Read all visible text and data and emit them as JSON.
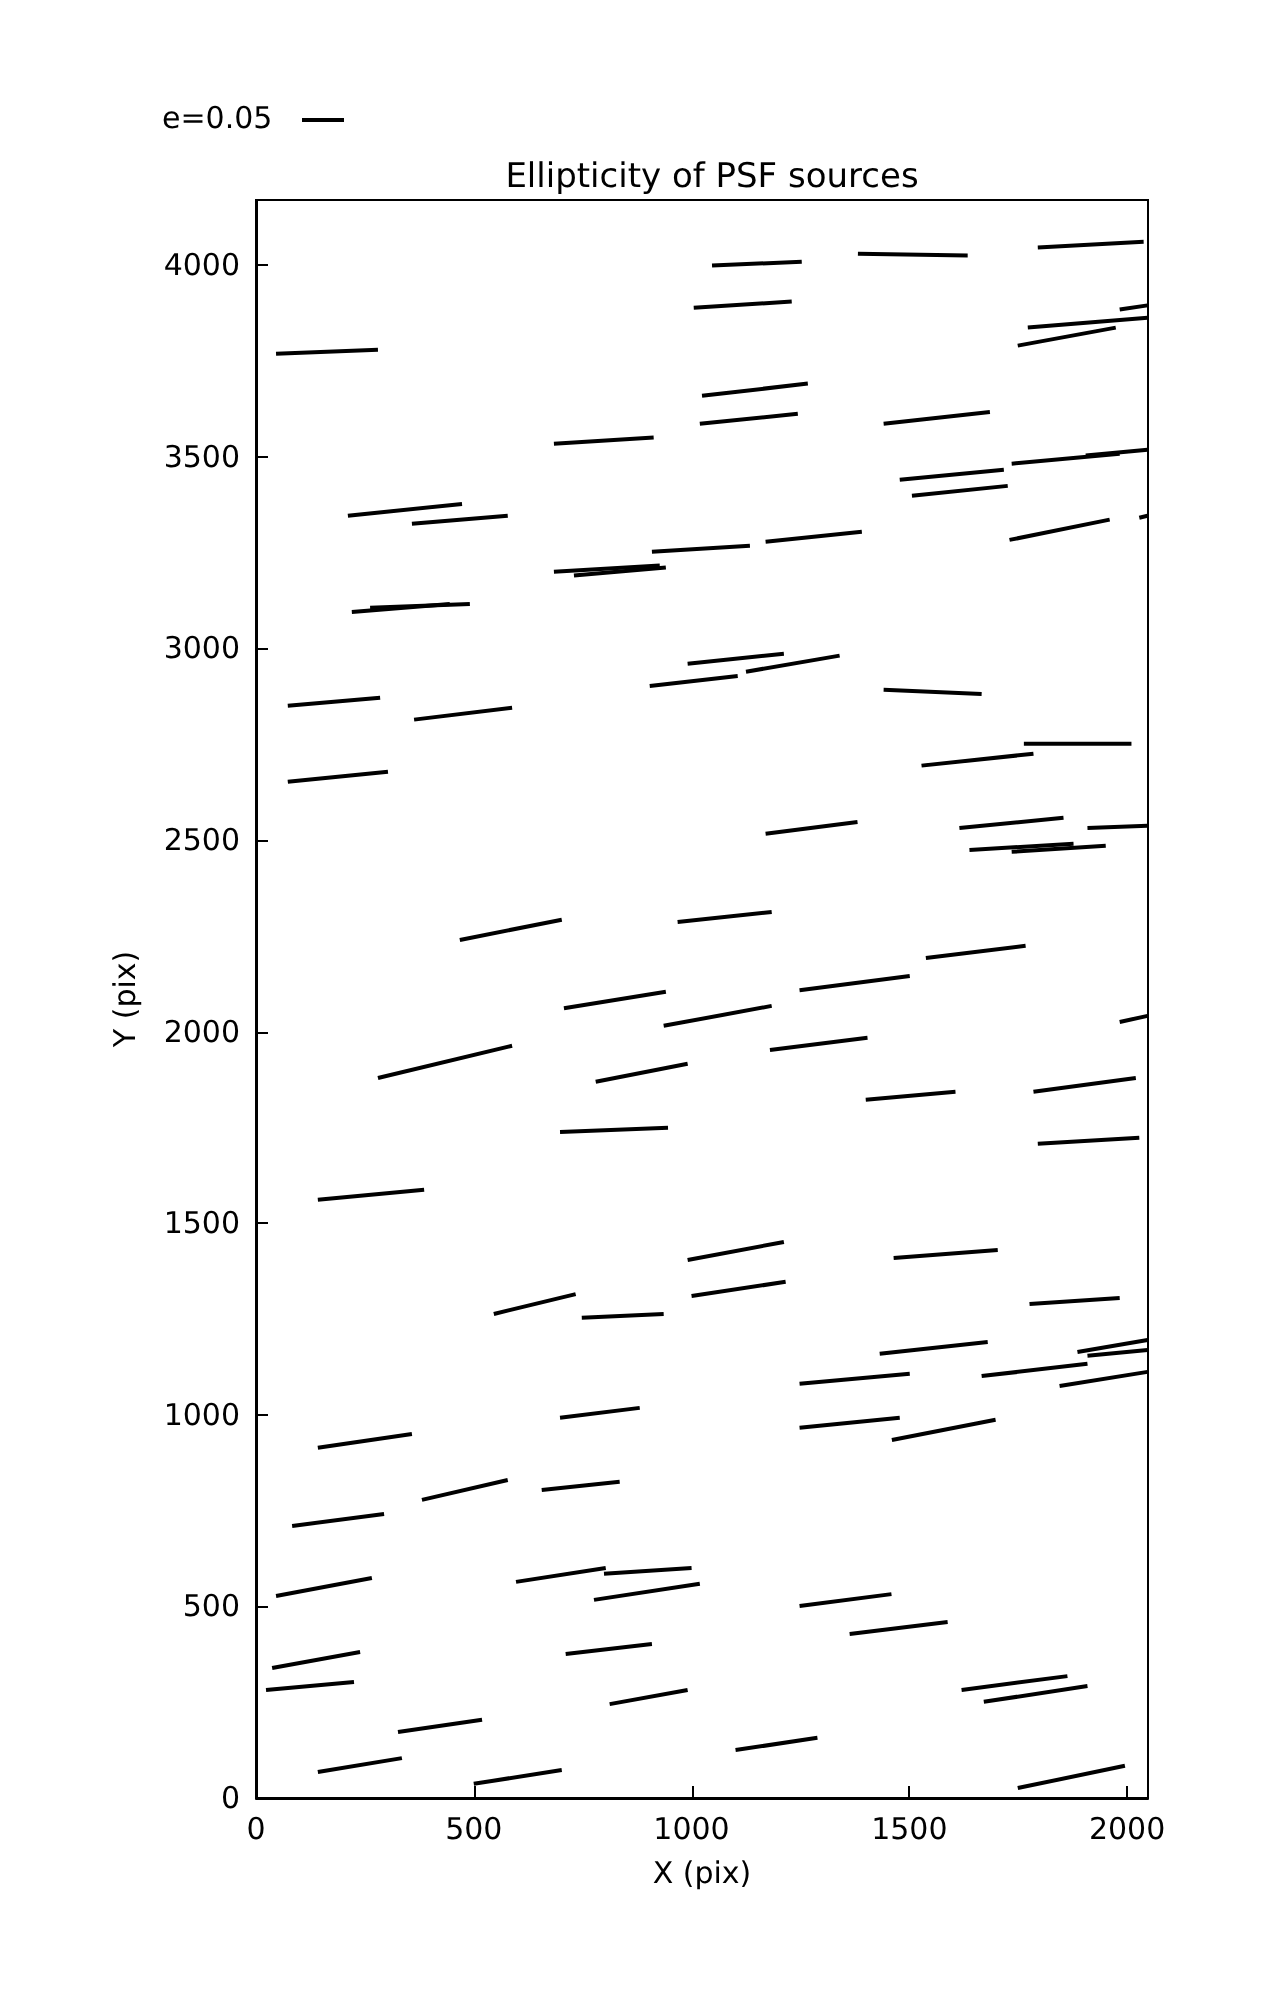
{
  "chart_data": {
    "type": "line",
    "title": "Ellipticity of PSF sources",
    "xlabel": "X (pix)",
    "ylabel": "Y (pix)",
    "annotations": [
      "e=0.05"
    ],
    "xlim": [
      0,
      2048
    ],
    "ylim": [
      0,
      4170
    ],
    "xticks": [
      0,
      500,
      1000,
      1500,
      2000
    ],
    "yticks": [
      0,
      500,
      1000,
      1500,
      2000,
      2500,
      3000,
      3500,
      4000
    ],
    "grid": false,
    "marker": "none",
    "color": "#000000",
    "series": [
      {
        "x": [
          46,
          280
        ],
        "values": [
          3769,
          3779
        ]
      },
      {
        "x": [
          1047,
          1253
        ],
        "values": [
          3999,
          4009
        ]
      },
      {
        "x": [
          1382,
          1634
        ],
        "values": [
          4030,
          4025
        ]
      },
      {
        "x": [
          1795,
          2038
        ],
        "values": [
          4046,
          4061
        ]
      },
      {
        "x": [
          1005,
          1230
        ],
        "values": [
          3889,
          3905
        ]
      },
      {
        "x": [
          1983,
          2047
        ],
        "values": [
          3884,
          3895
        ]
      },
      {
        "x": [
          1772,
          2047
        ],
        "values": [
          3837,
          3863
        ]
      },
      {
        "x": [
          1749,
          1974
        ],
        "values": [
          3790,
          3837
        ]
      },
      {
        "x": [
          1024,
          1267
        ],
        "values": [
          3659,
          3691
        ]
      },
      {
        "x": [
          1019,
          1244
        ],
        "values": [
          3586,
          3612
        ]
      },
      {
        "x": [
          1441,
          1685
        ],
        "values": [
          3586,
          3617
        ]
      },
      {
        "x": [
          684,
          913
        ],
        "values": [
          3534,
          3550
        ]
      },
      {
        "x": [
          1478,
          1717
        ],
        "values": [
          3440,
          3466
        ]
      },
      {
        "x": [
          1506,
          1726
        ],
        "values": [
          3398,
          3424
        ]
      },
      {
        "x": [
          1735,
          1983
        ],
        "values": [
          3482,
          3508
        ]
      },
      {
        "x": [
          1905,
          2047
        ],
        "values": [
          3503,
          3518
        ]
      },
      {
        "x": [
          211,
          473
        ],
        "values": [
          3346,
          3377
        ]
      },
      {
        "x": [
          358,
          578
        ],
        "values": [
          3325,
          3346
        ]
      },
      {
        "x": [
          684,
          927
        ],
        "values": [
          3200,
          3216
        ]
      },
      {
        "x": [
          730,
          941
        ],
        "values": [
          3190,
          3211
        ]
      },
      {
        "x": [
          909,
          1134
        ],
        "values": [
          3252,
          3268
        ]
      },
      {
        "x": [
          1170,
          1391
        ],
        "values": [
          3278,
          3304
        ]
      },
      {
        "x": [
          1730,
          1960
        ],
        "values": [
          3283,
          3336
        ]
      },
      {
        "x": [
          2028,
          2047
        ],
        "values": [
          3341,
          3346
        ]
      },
      {
        "x": [
          220,
          445
        ],
        "values": [
          3095,
          3116
        ]
      },
      {
        "x": [
          262,
          491
        ],
        "values": [
          3106,
          3116
        ]
      },
      {
        "x": [
          991,
          1212
        ],
        "values": [
          2960,
          2986
        ]
      },
      {
        "x": [
          1125,
          1340
        ],
        "values": [
          2939,
          2981
        ]
      },
      {
        "x": [
          904,
          1106
        ],
        "values": [
          2902,
          2928
        ]
      },
      {
        "x": [
          1441,
          1666
        ],
        "values": [
          2892,
          2881
        ]
      },
      {
        "x": [
          73,
          285
        ],
        "values": [
          2850,
          2871
        ]
      },
      {
        "x": [
          363,
          588
        ],
        "values": [
          2814,
          2845
        ]
      },
      {
        "x": [
          73,
          303
        ],
        "values": [
          2652,
          2678
        ]
      },
      {
        "x": [
          1528,
          1785
        ],
        "values": [
          2694,
          2725
        ]
      },
      {
        "x": [
          1763,
          2010
        ],
        "values": [
          2751,
          2751
        ]
      },
      {
        "x": [
          1170,
          1381
        ],
        "values": [
          2516,
          2547
        ]
      },
      {
        "x": [
          1615,
          1854
        ],
        "values": [
          2531,
          2558
        ]
      },
      {
        "x": [
          1909,
          2047
        ],
        "values": [
          2531,
          2537
        ]
      },
      {
        "x": [
          1638,
          1877
        ],
        "values": [
          2474,
          2490
        ]
      },
      {
        "x": [
          1735,
          1951
        ],
        "values": [
          2469,
          2485
        ]
      },
      {
        "x": [
          468,
          702
        ],
        "values": [
          2239,
          2292
        ]
      },
      {
        "x": [
          968,
          1184
        ],
        "values": [
          2286,
          2312
        ]
      },
      {
        "x": [
          1538,
          1767
        ],
        "values": [
          2192,
          2224
        ]
      },
      {
        "x": [
          1248,
          1501
        ],
        "values": [
          2108,
          2145
        ]
      },
      {
        "x": [
          707,
          941
        ],
        "values": [
          2061,
          2104
        ]
      },
      {
        "x": [
          936,
          1184
        ],
        "values": [
          2015,
          2067
        ]
      },
      {
        "x": [
          1180,
          1404
        ],
        "values": [
          1952,
          1984
        ]
      },
      {
        "x": [
          280,
          588
        ],
        "values": [
          1879,
          1963
        ]
      },
      {
        "x": [
          780,
          991
        ],
        "values": [
          1869,
          1916
        ]
      },
      {
        "x": [
          1400,
          1606
        ],
        "values": [
          1822,
          1843
        ]
      },
      {
        "x": [
          1785,
          2020
        ],
        "values": [
          1843,
          1879
        ]
      },
      {
        "x": [
          1983,
          2047
        ],
        "values": [
          2025,
          2041
        ]
      },
      {
        "x": [
          698,
          946
        ],
        "values": [
          1738,
          1749
        ]
      },
      {
        "x": [
          1795,
          2028
        ],
        "values": [
          1707,
          1723
        ]
      },
      {
        "x": [
          142,
          386
        ],
        "values": [
          1561,
          1587
        ]
      },
      {
        "x": [
          991,
          1212
        ],
        "values": [
          1404,
          1451
        ]
      },
      {
        "x": [
          546,
          734
        ],
        "values": [
          1263,
          1315
        ]
      },
      {
        "x": [
          748,
          936
        ],
        "values": [
          1253,
          1263
        ]
      },
      {
        "x": [
          1000,
          1216
        ],
        "values": [
          1310,
          1347
        ]
      },
      {
        "x": [
          1464,
          1703
        ],
        "values": [
          1409,
          1430
        ]
      },
      {
        "x": [
          1776,
          1983
        ],
        "values": [
          1289,
          1305
        ]
      },
      {
        "x": [
          1432,
          1680
        ],
        "values": [
          1159,
          1190
        ]
      },
      {
        "x": [
          1666,
          1909
        ],
        "values": [
          1101,
          1133
        ]
      },
      {
        "x": [
          1886,
          2047
        ],
        "values": [
          1164,
          1195
        ]
      },
      {
        "x": [
          1909,
          2047
        ],
        "values": [
          1154,
          1169
        ]
      },
      {
        "x": [
          1845,
          2047
        ],
        "values": [
          1075,
          1112
        ]
      },
      {
        "x": [
          1248,
          1501
        ],
        "values": [
          1081,
          1107
        ]
      },
      {
        "x": [
          1248,
          1478
        ],
        "values": [
          966,
          992
        ]
      },
      {
        "x": [
          1460,
          1698
        ],
        "values": [
          934,
          987
        ]
      },
      {
        "x": [
          698,
          881
        ],
        "values": [
          992,
          1018
        ]
      },
      {
        "x": [
          142,
          358
        ],
        "values": [
          914,
          950
        ]
      },
      {
        "x": [
          381,
          578
        ],
        "values": [
          778,
          830
        ]
      },
      {
        "x": [
          656,
          835
        ],
        "values": [
          804,
          825
        ]
      },
      {
        "x": [
          83,
          294
        ],
        "values": [
          710,
          741
        ]
      },
      {
        "x": [
          597,
          803
        ],
        "values": [
          564,
          600
        ]
      },
      {
        "x": [
          799,
          1000
        ],
        "values": [
          585,
          600
        ]
      },
      {
        "x": [
          776,
          1019
        ],
        "values": [
          517,
          559
        ]
      },
      {
        "x": [
          46,
          266
        ],
        "values": [
          527,
          574
        ]
      },
      {
        "x": [
          1248,
          1459
        ],
        "values": [
          501,
          532
        ]
      },
      {
        "x": [
          711,
          909
        ],
        "values": [
          376,
          402
        ]
      },
      {
        "x": [
          1363,
          1588
        ],
        "values": [
          428,
          459
        ]
      },
      {
        "x": [
          37,
          239
        ],
        "values": [
          339,
          381
        ]
      },
      {
        "x": [
          23,
          225
        ],
        "values": [
          282,
          303
        ]
      },
      {
        "x": [
          812,
          991
        ],
        "values": [
          245,
          282
        ]
      },
      {
        "x": [
          1620,
          1863
        ],
        "values": [
          282,
          318
        ]
      },
      {
        "x": [
          1671,
          1909
        ],
        "values": [
          251,
          292
        ]
      },
      {
        "x": [
          326,
          519
        ],
        "values": [
          172,
          204
        ]
      },
      {
        "x": [
          142,
          335
        ],
        "values": [
          68,
          104
        ]
      },
      {
        "x": [
          500,
          702
        ],
        "values": [
          37,
          73
        ]
      },
      {
        "x": [
          1101,
          1289
        ],
        "values": [
          125,
          157
        ]
      },
      {
        "x": [
          1749,
          1995
        ],
        "values": [
          26,
          84
        ]
      }
    ]
  }
}
